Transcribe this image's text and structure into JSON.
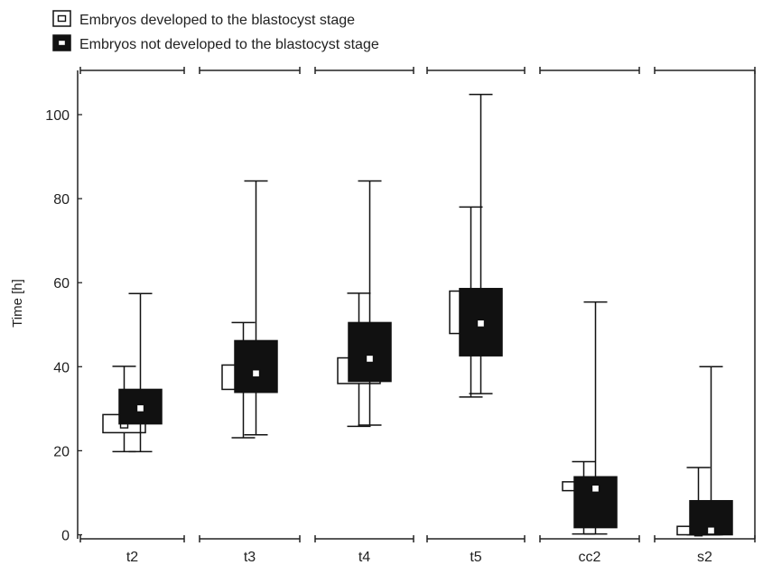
{
  "chart_data": {
    "type": "box",
    "ylabel": "Time [h]",
    "ylim": [
      0,
      110
    ],
    "yticks": [
      0,
      20,
      40,
      60,
      80,
      100
    ],
    "categories": [
      "t2",
      "t3",
      "t4",
      "t5",
      "cc2",
      "s2"
    ],
    "legend_placement": "top-left, above plot",
    "series": [
      {
        "name": "Embryos developed to the blastocyst stage",
        "fill": "#ffffff",
        "boxes": [
          {
            "whisker_low": 19.8,
            "q1": 24.3,
            "center": 26.3,
            "q3": 28.6,
            "whisker_high": 40.1
          },
          {
            "whisker_low": 23.1,
            "q1": 34.6,
            "center": 37.6,
            "q3": 40.4,
            "whisker_high": 50.5
          },
          {
            "whisker_low": 25.8,
            "q1": 36.0,
            "center": 39.1,
            "q3": 42.1,
            "whisker_high": 57.5
          },
          {
            "whisker_low": 32.8,
            "q1": 47.9,
            "center": 53.5,
            "q3": 58.0,
            "whisker_high": 78.0
          },
          {
            "whisker_low": 0.2,
            "q1": 10.5,
            "center": 11.5,
            "q3": 12.6,
            "whisker_high": 17.4
          },
          {
            "whisker_low": 0.0,
            "q1": 0.0,
            "center": 0.6,
            "q3": 2.0,
            "whisker_high": 16.0
          }
        ]
      },
      {
        "name": "Embryos not developed to the blastocyst stage",
        "fill": "#111111",
        "boxes": [
          {
            "whisker_low": 19.8,
            "q1": 26.4,
            "center": 30.1,
            "q3": 34.6,
            "whisker_high": 57.4
          },
          {
            "whisker_low": 23.8,
            "q1": 33.9,
            "center": 38.4,
            "q3": 46.2,
            "whisker_high": 84.2
          },
          {
            "whisker_low": 26.1,
            "q1": 36.5,
            "center": 41.9,
            "q3": 50.5,
            "whisker_high": 84.2
          },
          {
            "whisker_low": 33.6,
            "q1": 42.6,
            "center": 50.3,
            "q3": 58.6,
            "whisker_high": 104.8
          },
          {
            "whisker_low": 0.2,
            "q1": 1.7,
            "center": 11.0,
            "q3": 13.8,
            "whisker_high": 55.4
          },
          {
            "whisker_low": 0.0,
            "q1": 0.0,
            "center": 1.0,
            "q3": 8.1,
            "whisker_high": 40.0
          }
        ]
      }
    ]
  }
}
